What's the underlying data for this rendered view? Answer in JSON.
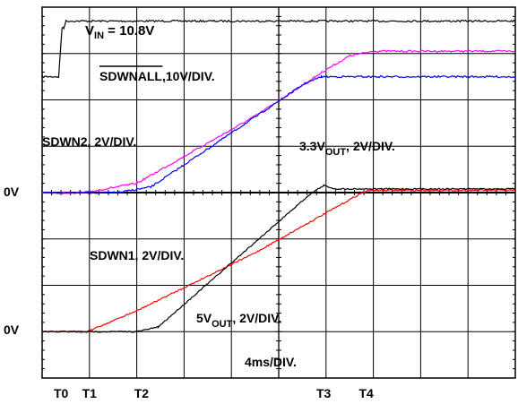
{
  "chart_data": {
    "type": "line",
    "grid": true,
    "timebase": "4ms/DIV.",
    "divisions": {
      "x": 10,
      "y": 8
    },
    "zero_labels": [
      "0V",
      "0V"
    ],
    "time_markers": [
      {
        "label": "T0",
        "t_div": 0.4
      },
      {
        "label": "T1",
        "t_div": 1.0
      },
      {
        "label": "T2",
        "t_div": 2.1
      },
      {
        "label": "T3",
        "t_div": 5.95
      },
      {
        "label": "T4",
        "t_div": 6.85
      }
    ],
    "annotations": {
      "vin": {
        "main": "V",
        "sub": "IN",
        "rest": " = 10.8V"
      },
      "sdwnall": {
        "overline": "SDWNALL",
        "rest": ",10V/DIV."
      },
      "sdwn2": {
        "text": "SDWN2, 2V/DIV."
      },
      "v33out": {
        "main": "3.3V",
        "sub": "OUT",
        "rest": ", 2V/DIV."
      },
      "sdwn1": {
        "text": "SDWN1, 2V/DIV."
      },
      "v5out": {
        "main": "5V",
        "sub": "OUT",
        "rest": ", 2V/DIV."
      }
    },
    "series": [
      {
        "color": "#000000",
        "bound": "annotations.sdwnall",
        "amp": 0.5,
        "points": [
          [
            0,
            2.5
          ],
          [
            0.35,
            2.5
          ],
          [
            0.42,
            3.55
          ],
          [
            0.46,
            3.55
          ],
          [
            0.5,
            3.7
          ],
          [
            10,
            3.7
          ]
        ]
      },
      {
        "color": "#ff00ff",
        "bound": "annotations.sdwn2",
        "amp": 0.5,
        "points": [
          [
            0,
            0
          ],
          [
            0.9,
            0
          ],
          [
            2.0,
            0.2
          ],
          [
            4.5,
            1.65
          ],
          [
            6.0,
            2.65
          ],
          [
            6.5,
            2.95
          ],
          [
            7.0,
            3.05
          ],
          [
            10,
            3.05
          ]
        ]
      },
      {
        "color": "#0000ff",
        "bound": "annotations.v33out",
        "amp": 0.5,
        "points": [
          [
            0,
            0
          ],
          [
            1.6,
            0
          ],
          [
            2.3,
            0.12
          ],
          [
            5.55,
            2.35
          ],
          [
            5.9,
            2.5
          ],
          [
            10,
            2.5
          ]
        ]
      },
      {
        "color": "#ff0000",
        "bound": "annotations.sdwn1",
        "amp": 0.4,
        "points": [
          [
            0,
            0
          ],
          [
            0.95,
            0
          ],
          [
            2.0,
            0.45
          ],
          [
            4.5,
            1.7
          ],
          [
            6.8,
            3.02
          ],
          [
            7.0,
            3.05
          ],
          [
            10,
            3.05
          ]
        ]
      },
      {
        "color": "#000000",
        "bound": "annotations.v5out",
        "amp": 0.35,
        "points": [
          [
            0,
            0
          ],
          [
            2.0,
            0
          ],
          [
            2.45,
            0.1
          ],
          [
            5.7,
            3.0
          ],
          [
            5.95,
            3.15
          ],
          [
            6.2,
            3.08
          ],
          [
            10,
            3.08
          ]
        ]
      }
    ]
  }
}
